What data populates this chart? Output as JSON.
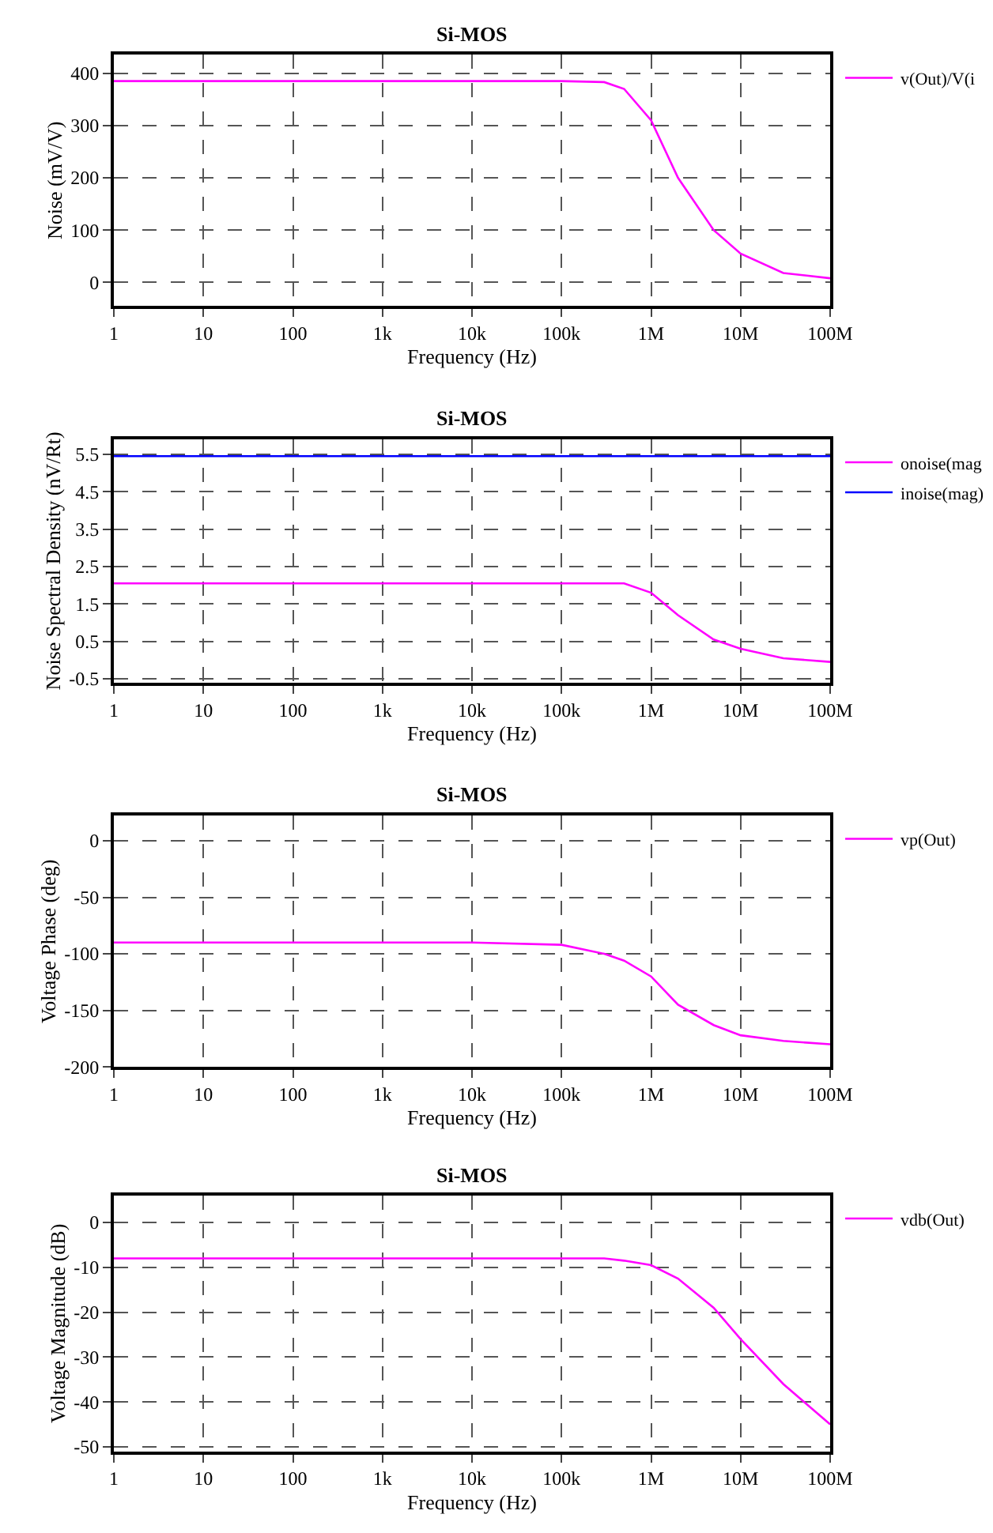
{
  "chart_data": [
    {
      "type": "line",
      "title": "Si-MOS",
      "xlabel": "Frequency (Hz)",
      "ylabel": "Noise (mV/V)",
      "log": "x",
      "grid": true,
      "legend": "top right",
      "xlim": [
        1,
        100000000
      ],
      "ylim": [
        -45,
        435
      ],
      "xticks": [
        {
          "value": 1,
          "label": "1"
        },
        {
          "value": 10,
          "label": "10"
        },
        {
          "value": 100,
          "label": "100"
        },
        {
          "value": 1000,
          "label": "1k"
        },
        {
          "value": 10000,
          "label": "10k"
        },
        {
          "value": 100000,
          "label": "100k"
        },
        {
          "value": 1000000,
          "label": "1M"
        },
        {
          "value": 10000000,
          "label": "10M"
        },
        {
          "value": 100000000,
          "label": "100M"
        }
      ],
      "yticks": [
        0,
        100,
        200,
        300,
        400
      ],
      "x": [
        1,
        10,
        100,
        1000,
        10000,
        100000,
        300000,
        500000,
        1000000,
        2000000,
        5000000,
        10000000,
        30000000,
        100000000
      ],
      "series": [
        {
          "name": "v(Out)/V(i",
          "color": "#ff00ff",
          "values": [
            385,
            385,
            385,
            385,
            385,
            385,
            383,
            370,
            310,
            200,
            100,
            55,
            18,
            8
          ]
        }
      ]
    },
    {
      "type": "line",
      "title": "Si-MOS",
      "xlabel": "Frequency (Hz)",
      "ylabel": "Noise Spectral Density (nV/Rt)",
      "log": "x",
      "grid": true,
      "legend": "top right",
      "xlim": [
        1,
        100000000
      ],
      "ylim": [
        -0.6,
        5.9
      ],
      "xticks": [
        {
          "value": 1,
          "label": "1"
        },
        {
          "value": 10,
          "label": "10"
        },
        {
          "value": 100,
          "label": "100"
        },
        {
          "value": 1000,
          "label": "1k"
        },
        {
          "value": 10000,
          "label": "10k"
        },
        {
          "value": 100000,
          "label": "100k"
        },
        {
          "value": 1000000,
          "label": "1M"
        },
        {
          "value": 10000000,
          "label": "10M"
        },
        {
          "value": 100000000,
          "label": "100M"
        }
      ],
      "yticks": [
        {
          "value": 5.5,
          "label": "5.5"
        },
        {
          "value": 4.5,
          "label": "4.5"
        },
        {
          "value": 3.5,
          "label": "3.5"
        },
        {
          "value": 2.5,
          "label": "2.5"
        },
        {
          "value": 1.5,
          "label": "1.5"
        },
        {
          "value": 0.5,
          "label": "0.5"
        },
        {
          "value": -0.5,
          "label": "-0.5"
        }
      ],
      "x": [
        1,
        10,
        100,
        1000,
        10000,
        100000,
        300000,
        500000,
        1000000,
        2000000,
        5000000,
        10000000,
        30000000,
        100000000
      ],
      "series": [
        {
          "name": "onoise(mag",
          "color": "#ff00ff",
          "values": [
            2.05,
            2.05,
            2.05,
            2.05,
            2.05,
            2.05,
            2.05,
            2.05,
            1.8,
            1.2,
            0.55,
            0.3,
            0.05,
            -0.05
          ]
        },
        {
          "name": "inoise(mag)",
          "color": "#0000ff",
          "values": [
            5.45,
            5.45,
            5.45,
            5.45,
            5.45,
            5.45,
            5.45,
            5.45,
            5.45,
            5.45,
            5.45,
            5.45,
            5.45,
            5.45
          ]
        }
      ]
    },
    {
      "type": "line",
      "title": "Si-MOS",
      "xlabel": "Frequency (Hz)",
      "ylabel": "Voltage Phase (deg)",
      "log": "x",
      "grid": true,
      "legend": "top right",
      "xlim": [
        1,
        100000000
      ],
      "ylim": [
        -200,
        22
      ],
      "xticks": [
        {
          "value": 1,
          "label": "1"
        },
        {
          "value": 10,
          "label": "10"
        },
        {
          "value": 100,
          "label": "100"
        },
        {
          "value": 1000,
          "label": "1k"
        },
        {
          "value": 10000,
          "label": "10k"
        },
        {
          "value": 100000,
          "label": "100k"
        },
        {
          "value": 1000000,
          "label": "1M"
        },
        {
          "value": 10000000,
          "label": "10M"
        },
        {
          "value": 100000000,
          "label": "100M"
        }
      ],
      "yticks": [
        0,
        -50,
        -100,
        -150,
        -200
      ],
      "x": [
        1,
        10,
        100,
        1000,
        10000,
        100000,
        300000,
        500000,
        1000000,
        2000000,
        5000000,
        10000000,
        30000000,
        100000000
      ],
      "series": [
        {
          "name": "vp(Out)",
          "color": "#ff00ff",
          "values": [
            -90,
            -90,
            -90,
            -90,
            -90,
            -92,
            -100,
            -106,
            -120,
            -145,
            -163,
            -172,
            -177,
            -180
          ]
        }
      ]
    },
    {
      "type": "line",
      "title": "Si-MOS",
      "xlabel": "Frequency (Hz)",
      "ylabel": "Voltage Magnitude (dB)",
      "log": "x",
      "grid": true,
      "legend": "top right",
      "xlim": [
        1,
        100000000
      ],
      "ylim": [
        -51,
        6
      ],
      "xticks": [
        {
          "value": 1,
          "label": "1"
        },
        {
          "value": 10,
          "label": "10"
        },
        {
          "value": 100,
          "label": "100"
        },
        {
          "value": 1000,
          "label": "1k"
        },
        {
          "value": 10000,
          "label": "10k"
        },
        {
          "value": 100000,
          "label": "100k"
        },
        {
          "value": 1000000,
          "label": "1M"
        },
        {
          "value": 10000000,
          "label": "10M"
        },
        {
          "value": 100000000,
          "label": "100M"
        }
      ],
      "yticks": [
        0,
        -10,
        -20,
        -30,
        -40,
        -50
      ],
      "x": [
        1,
        10,
        100,
        1000,
        10000,
        100000,
        300000,
        500000,
        1000000,
        2000000,
        5000000,
        10000000,
        30000000,
        100000000
      ],
      "series": [
        {
          "name": "vdb(Out)",
          "color": "#ff00ff",
          "values": [
            -8,
            -8,
            -8,
            -8,
            -8,
            -8,
            -8,
            -8.5,
            -9.5,
            -12.5,
            -19,
            -26,
            -36,
            -45
          ]
        }
      ]
    }
  ]
}
